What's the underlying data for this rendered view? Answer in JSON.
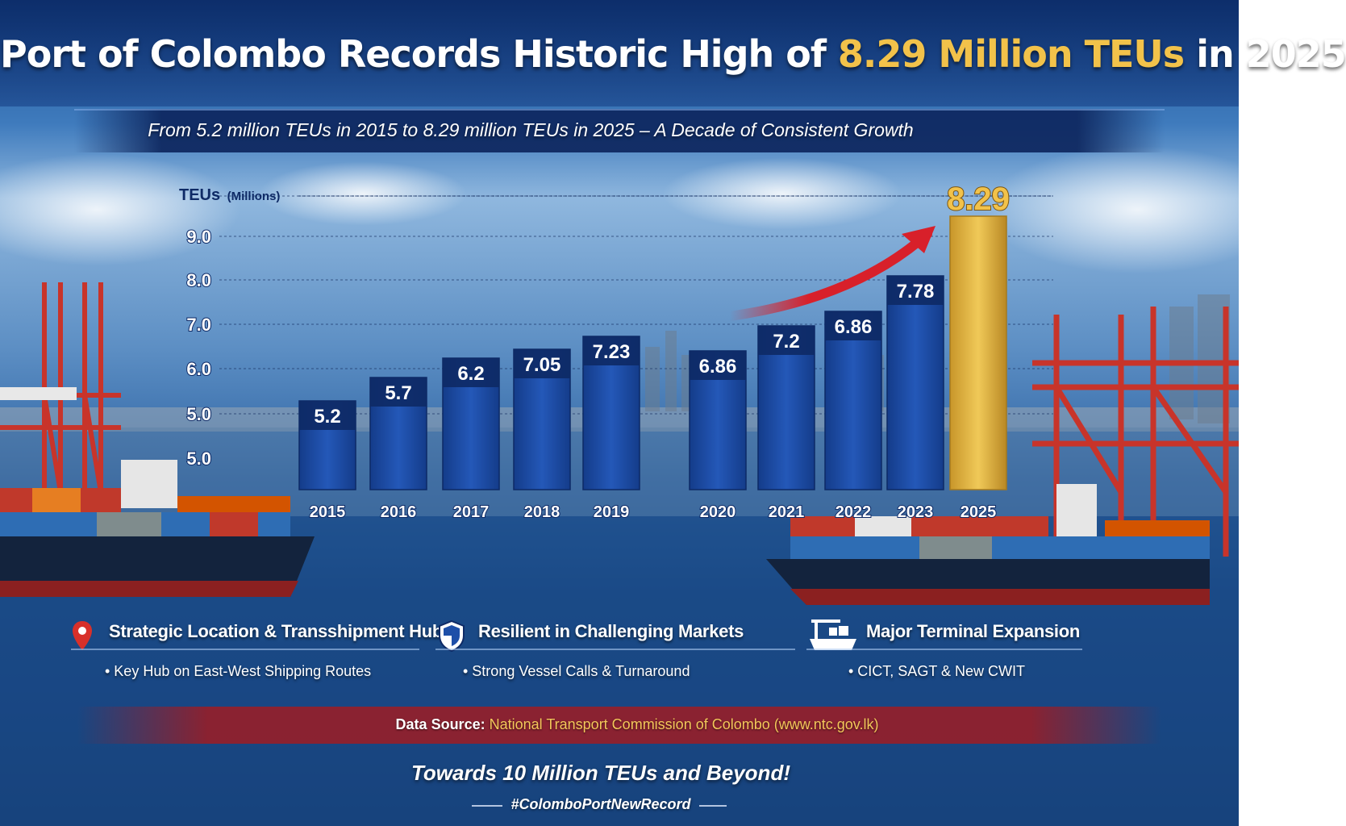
{
  "header": {
    "title_prefix": "Port of Colombo Records Historic High of",
    "title_highlight": "8.29 Million TEUs",
    "title_suffix": "in 2025",
    "subtitle": "From 5.2 million TEUs in 2015 to 8.29 million TEUs in 2025 – A Decade of Consistent Growth"
  },
  "chart_data": {
    "type": "bar",
    "ylabel_main": "TEUs",
    "ylabel_unit": "(Millions)",
    "y_tick_labels": [
      "5.0",
      "5.0",
      "6.0",
      "7.0",
      "8.0",
      "9.0"
    ],
    "categories": [
      "2015",
      "2016",
      "2017",
      "2018",
      "2019",
      "2020",
      "2021",
      "2022",
      "2023",
      "2025"
    ],
    "values": [
      5.2,
      5.7,
      6.2,
      7.05,
      7.23,
      6.86,
      7.2,
      6.86,
      7.78,
      8.29
    ],
    "value_labels": [
      "5.2",
      "5.7",
      "6.2",
      "7.05",
      "7.23",
      "6.86",
      "7.2",
      "6.86",
      "7.78",
      "8.29"
    ],
    "highlight_index": 9,
    "colors": {
      "bar": "#1e4fa8",
      "highlight": "#e0b43c",
      "arrow": "#d8202a"
    },
    "grid": true
  },
  "features": [
    {
      "icon": "location-pin-icon",
      "title": "Strategic Location & Transshipment Hub",
      "item": "• Key Hub on East-West Shipping Routes"
    },
    {
      "icon": "shield-icon",
      "title": "Resilient in Challenging Markets",
      "item": "• Strong Vessel Calls & Turnaround"
    },
    {
      "icon": "crane-ship-icon",
      "title": "Major Terminal Expansion",
      "item": "• CICT, SAGT & New CWIT"
    }
  ],
  "footer": {
    "source_label": "Data Source:",
    "source_value": "National Transport Commission of Colombo (www.ntc.gov.lk)",
    "tagline": "Towards 10 Million TEUs and Beyond!",
    "hashtag": "#ColomboPortNewRecord"
  }
}
